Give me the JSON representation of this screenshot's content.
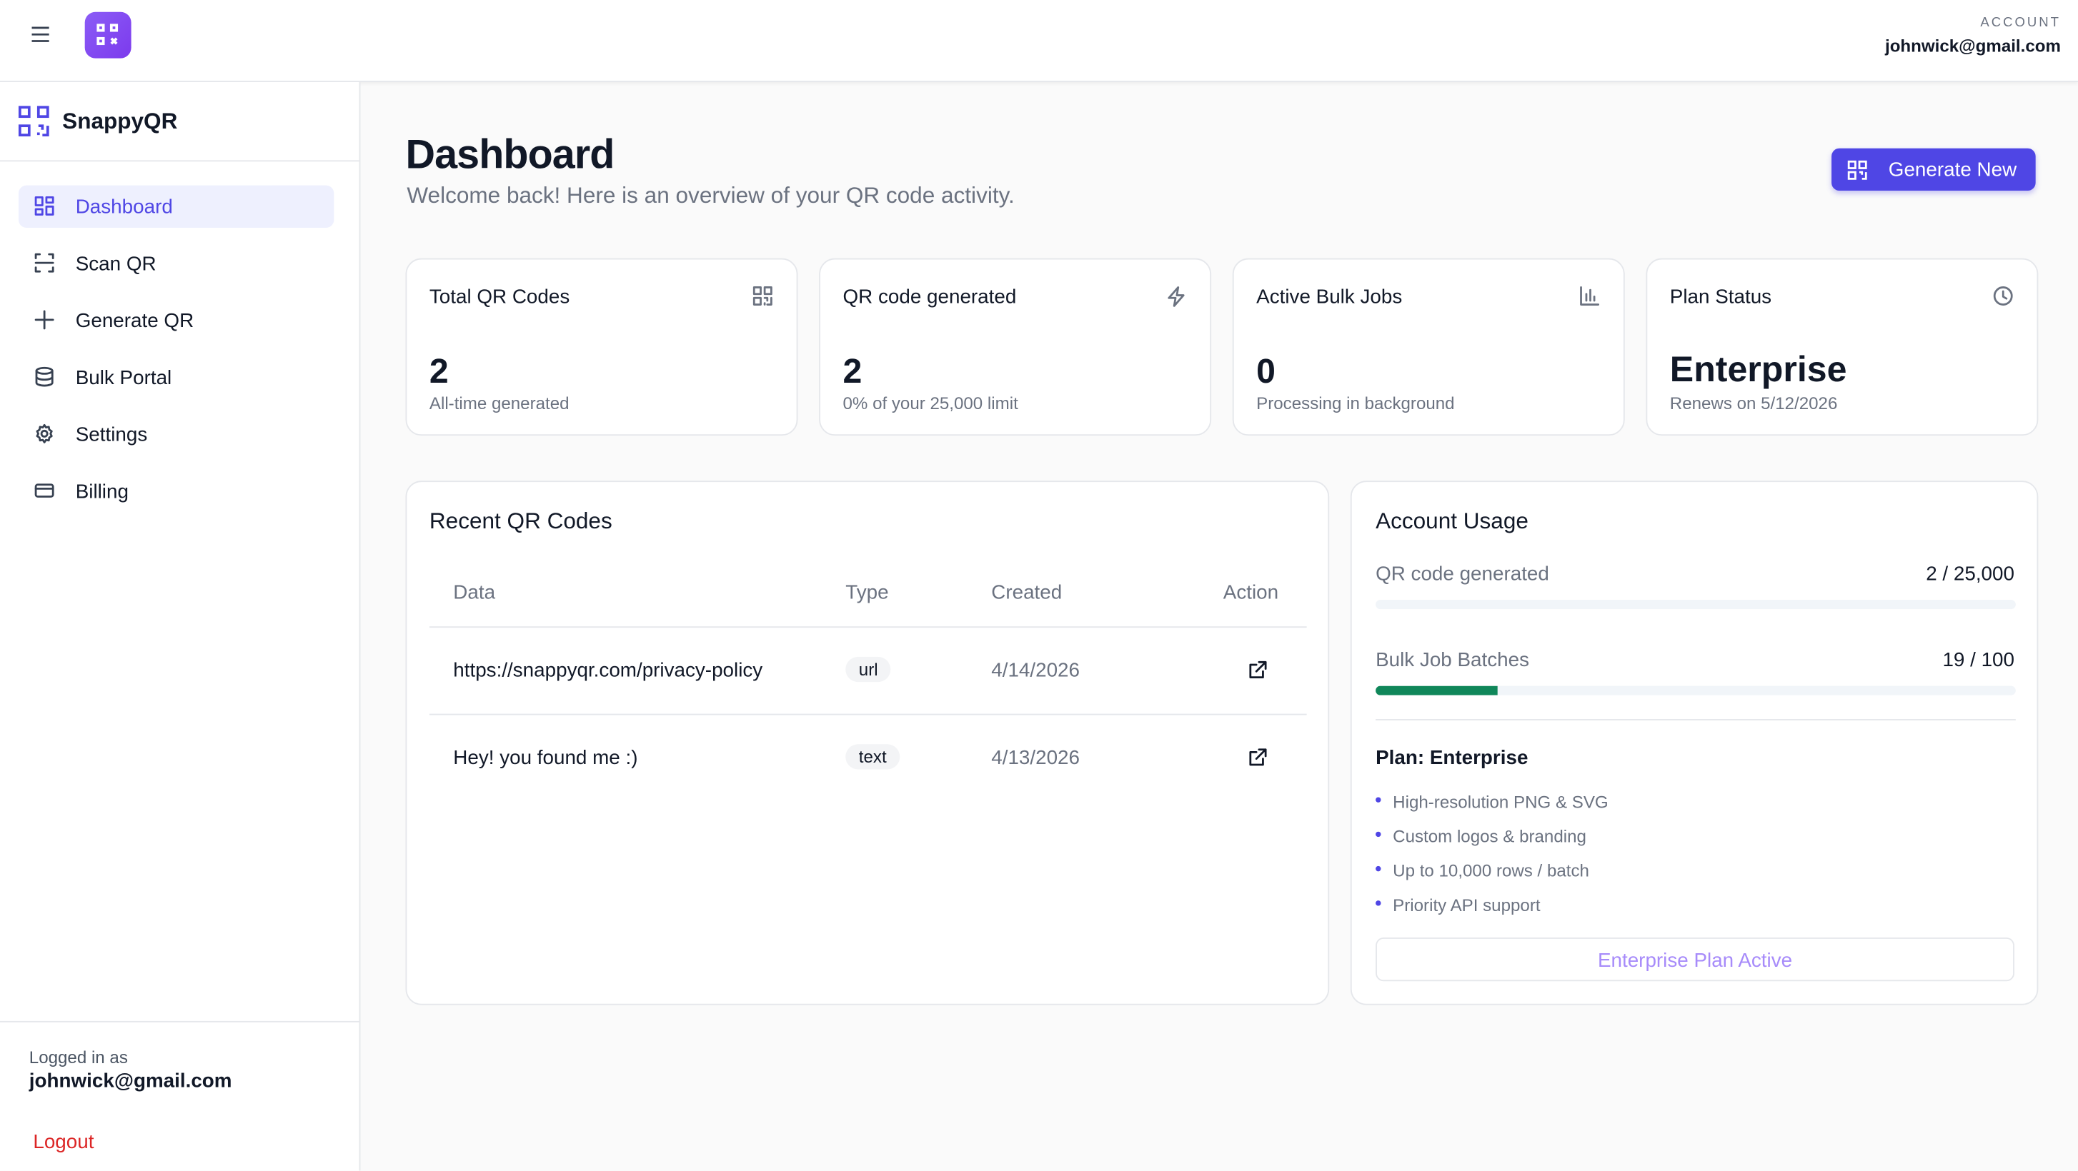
{
  "topbar": {
    "account_label": "ACCOUNT",
    "email": "johnwick@gmail.com"
  },
  "sidebar": {
    "brand": "SnappyQR",
    "nav": [
      "Dashboard",
      "Scan QR",
      "Generate QR",
      "Bulk Portal",
      "Settings",
      "Billing"
    ],
    "logged_in_label": "Logged in as",
    "email": "johnwick@gmail.com",
    "logout": "Logout"
  },
  "header": {
    "title": "Dashboard",
    "subtitle": "Welcome back! Here is an overview of your QR code activity.",
    "button": "Generate New"
  },
  "stats": [
    {
      "title": "Total QR Codes",
      "value": "2",
      "note": "All-time generated"
    },
    {
      "title": "QR code generated",
      "value": "2",
      "note": "0% of your 25,000 limit"
    },
    {
      "title": "Active Bulk Jobs",
      "value": "0",
      "note": "Processing in background"
    },
    {
      "title": "Plan Status",
      "value": "Enterprise",
      "note": "Renews on 5/12/2026"
    }
  ],
  "recent": {
    "title": "Recent QR Codes",
    "columns": [
      "Data",
      "Type",
      "Created",
      "Action"
    ],
    "rows": [
      [
        "https://snappyqr.com/privacy-policy",
        "url",
        "4/14/2026"
      ],
      [
        "Hey! you found me :)",
        "text",
        "4/13/2026"
      ]
    ]
  },
  "usage": {
    "title": "Account Usage",
    "items": [
      {
        "label": "QR code generated",
        "used": 2,
        "limit": 25000,
        "value_label": "2 / 25,000"
      },
      {
        "label": "Bulk Job Batches",
        "used": 19,
        "limit": 100,
        "value_label": "19 / 100"
      }
    ],
    "plan_title": "Plan: Enterprise",
    "features": [
      "High-resolution PNG & SVG",
      "Custom logos & branding",
      "Up to 10,000 rows / batch",
      "Priority API support"
    ],
    "plan_button": "Enterprise Plan Active"
  }
}
